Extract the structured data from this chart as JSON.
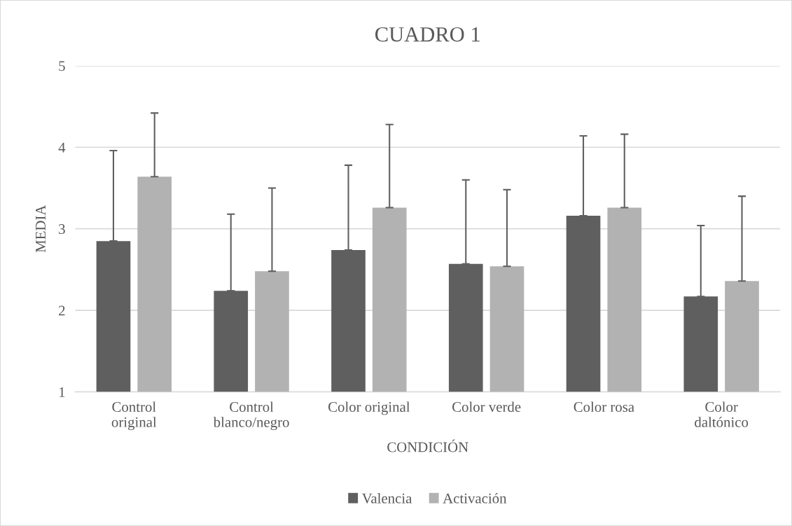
{
  "chart_data": {
    "type": "bar",
    "title": "CUADRO 1",
    "xlabel": "CONDICIÓN",
    "ylabel": "MEDIA",
    "categories": [
      "Control\noriginal",
      "Control\nblanco/negro",
      "Color original",
      "Color verde",
      "Color rosa",
      "Color\ndaltónico"
    ],
    "series": [
      {
        "name": "Valencia",
        "color": "#5f5f5f",
        "values": [
          2.85,
          2.24,
          2.74,
          2.57,
          3.16,
          2.17
        ],
        "errors": [
          [
            2.85,
            3.96
          ],
          [
            2.24,
            3.18
          ],
          [
            2.74,
            3.78
          ],
          [
            2.57,
            3.6
          ],
          [
            3.16,
            4.14
          ],
          [
            2.17,
            3.04
          ]
        ]
      },
      {
        "name": "Activación",
        "color": "#b2b2b2",
        "values": [
          3.64,
          2.48,
          3.26,
          2.54,
          3.26,
          2.36
        ],
        "errors": [
          [
            3.64,
            4.42
          ],
          [
            2.48,
            3.5
          ],
          [
            3.26,
            4.28
          ],
          [
            2.54,
            3.48
          ],
          [
            3.26,
            4.16
          ],
          [
            2.36,
            3.4
          ]
        ]
      }
    ],
    "ylim": [
      1,
      5
    ],
    "yticks": [
      1,
      2,
      3,
      4,
      5
    ],
    "grid": "y",
    "legend": "bottom"
  }
}
